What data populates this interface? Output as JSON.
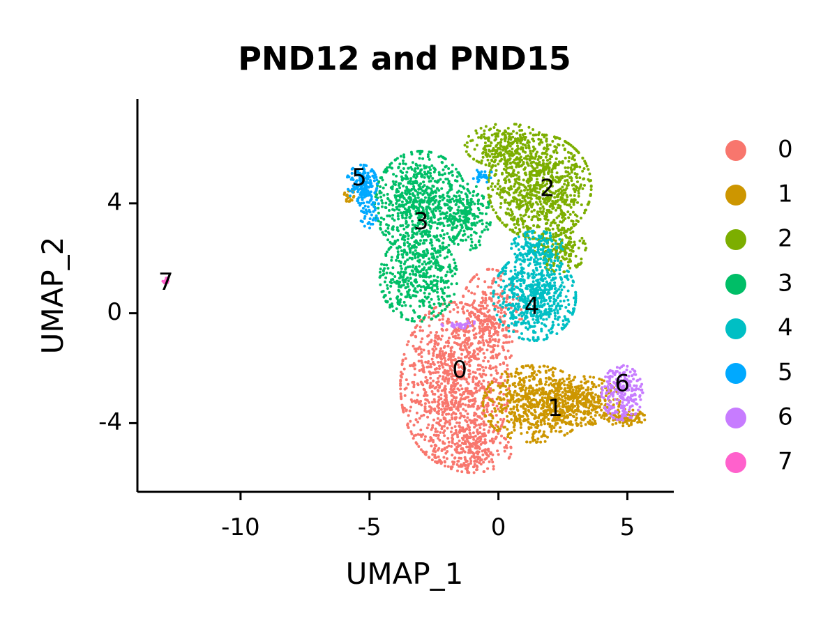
{
  "chart_data": {
    "type": "scatter",
    "title": "PND12 and PND15",
    "xlabel": "UMAP_1",
    "ylabel": "UMAP_2",
    "xlim": [
      -14,
      6.8
    ],
    "ylim": [
      -6.5,
      7.8
    ],
    "x_ticks": [
      -10,
      -5,
      0,
      5
    ],
    "y_ticks": [
      -4,
      0,
      4
    ],
    "x_tick_labels": [
      "-10",
      "-5",
      "0",
      "5"
    ],
    "y_tick_labels": [
      "-4",
      "0",
      "4"
    ],
    "grid": false,
    "legend_position": "right",
    "series": [
      {
        "name": "0",
        "color": "#F8766D",
        "label_at": [
          -1.5,
          -2.1
        ],
        "regions": [
          {
            "cx": -1.7,
            "cy": -2.6,
            "rx": 2.1,
            "ry": 3.0,
            "n": 1100
          },
          {
            "cx": -0.3,
            "cy": -0.2,
            "rx": 1.2,
            "ry": 1.8,
            "n": 300
          },
          {
            "cx": -1.0,
            "cy": -5.0,
            "rx": 1.5,
            "ry": 0.8,
            "n": 200
          }
        ]
      },
      {
        "name": "1",
        "color": "#CD9600",
        "label_at": [
          2.2,
          -3.5
        ],
        "regions": [
          {
            "cx": 1.4,
            "cy": -3.3,
            "rx": 2.0,
            "ry": 1.4,
            "n": 650
          },
          {
            "cx": 3.3,
            "cy": -3.2,
            "rx": 1.4,
            "ry": 0.9,
            "n": 350
          },
          {
            "cx": 4.9,
            "cy": -3.8,
            "rx": 0.8,
            "ry": 0.3,
            "n": 90
          },
          {
            "cx": -5.8,
            "cy": 4.3,
            "rx": 0.2,
            "ry": 0.25,
            "n": 20
          }
        ]
      },
      {
        "name": "2",
        "color": "#7CAE00",
        "label_at": [
          1.9,
          4.5
        ],
        "regions": [
          {
            "cx": 1.6,
            "cy": 4.6,
            "rx": 2.0,
            "ry": 1.9,
            "n": 900
          },
          {
            "cx": 0.3,
            "cy": 6.1,
            "rx": 1.6,
            "ry": 0.8,
            "n": 260
          },
          {
            "cx": 2.4,
            "cy": 2.3,
            "rx": 1.0,
            "ry": 0.8,
            "n": 180
          }
        ]
      },
      {
        "name": "3",
        "color": "#00BE67",
        "label_at": [
          -3.0,
          3.3
        ],
        "regions": [
          {
            "cx": -3.0,
            "cy": 4.0,
            "rx": 1.8,
            "ry": 1.9,
            "n": 750
          },
          {
            "cx": -3.1,
            "cy": 1.3,
            "rx": 1.5,
            "ry": 1.6,
            "n": 450
          },
          {
            "cx": -1.2,
            "cy": 3.5,
            "rx": 0.9,
            "ry": 1.2,
            "n": 200
          }
        ]
      },
      {
        "name": "4",
        "color": "#00BFC4",
        "label_at": [
          1.3,
          0.2
        ],
        "regions": [
          {
            "cx": 1.4,
            "cy": 0.6,
            "rx": 1.6,
            "ry": 1.6,
            "n": 650
          },
          {
            "cx": 1.5,
            "cy": 2.4,
            "rx": 1.0,
            "ry": 0.6,
            "n": 150
          }
        ]
      },
      {
        "name": "5",
        "color": "#00A9FF",
        "label_at": [
          -5.4,
          4.9
        ],
        "regions": [
          {
            "cx": -5.3,
            "cy": 4.7,
            "rx": 0.6,
            "ry": 0.7,
            "n": 170
          },
          {
            "cx": -5.0,
            "cy": 3.7,
            "rx": 0.4,
            "ry": 0.6,
            "n": 50
          },
          {
            "cx": -0.6,
            "cy": 5.0,
            "rx": 0.4,
            "ry": 0.25,
            "n": 30
          }
        ]
      },
      {
        "name": "6",
        "color": "#C77CFF",
        "label_at": [
          4.8,
          -2.6
        ],
        "regions": [
          {
            "cx": 4.8,
            "cy": -2.9,
            "rx": 0.8,
            "ry": 1.0,
            "n": 240
          },
          {
            "cx": -1.5,
            "cy": -0.4,
            "rx": 0.7,
            "ry": 0.15,
            "n": 30
          }
        ]
      },
      {
        "name": "7",
        "color": "#FF61CC",
        "label_at": [
          -12.9,
          1.1
        ],
        "regions": [
          {
            "cx": -12.9,
            "cy": 1.2,
            "rx": 0.15,
            "ry": 0.1,
            "n": 12
          }
        ]
      }
    ]
  }
}
